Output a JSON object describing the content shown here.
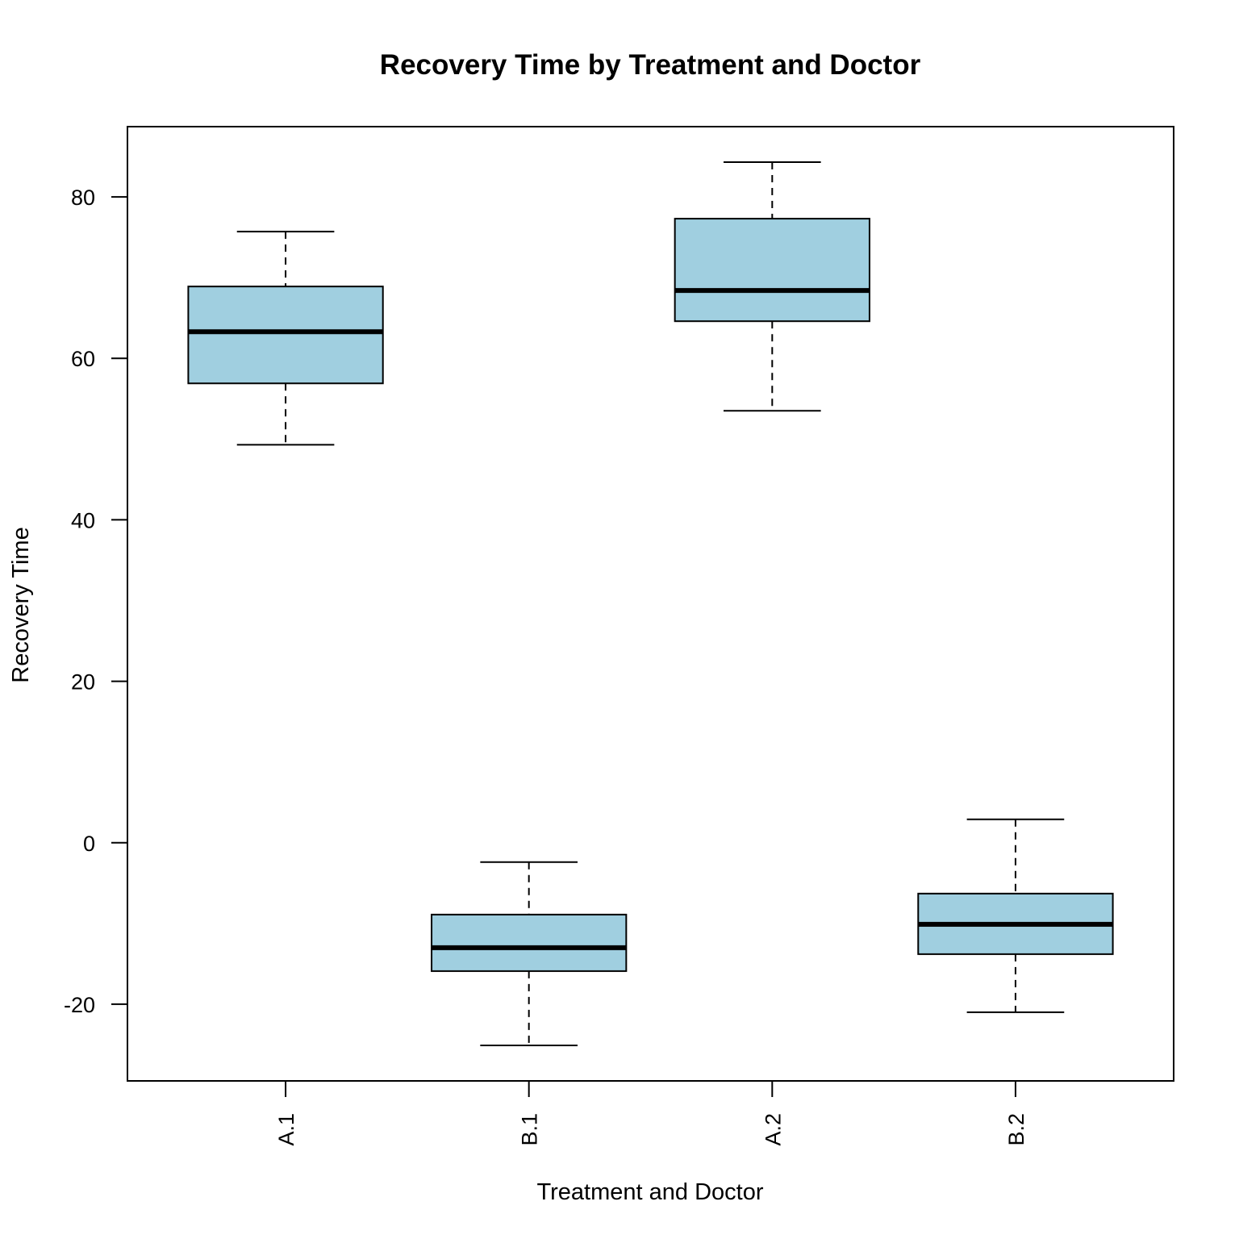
{
  "chart_data": {
    "type": "box",
    "title": "Recovery Time by Treatment and Doctor",
    "xlabel": "Treatment and Doctor",
    "ylabel": "Recovery Time",
    "ylim": [
      -29.5,
      88.7
    ],
    "yticks": [
      -20,
      0,
      20,
      40,
      60,
      80
    ],
    "categories": [
      "A.1",
      "B.1",
      "A.2",
      "B.2"
    ],
    "boxes": [
      {
        "category": "A.1",
        "whisker_low": 49.3,
        "q1": 56.9,
        "median": 63.3,
        "q3": 68.9,
        "whisker_high": 75.7
      },
      {
        "category": "B.1",
        "whisker_low": -25.1,
        "q1": -15.9,
        "median": -13.0,
        "q3": -8.9,
        "whisker_high": -2.4
      },
      {
        "category": "A.2",
        "whisker_low": 53.5,
        "q1": 64.6,
        "median": 68.4,
        "q3": 77.3,
        "whisker_high": 84.3
      },
      {
        "category": "B.2",
        "whisker_low": -21.0,
        "q1": -13.8,
        "median": -10.1,
        "q3": -6.3,
        "whisker_high": 2.9
      }
    ],
    "box_fill": "#a0cfe0",
    "grid": false,
    "legend": "none"
  }
}
